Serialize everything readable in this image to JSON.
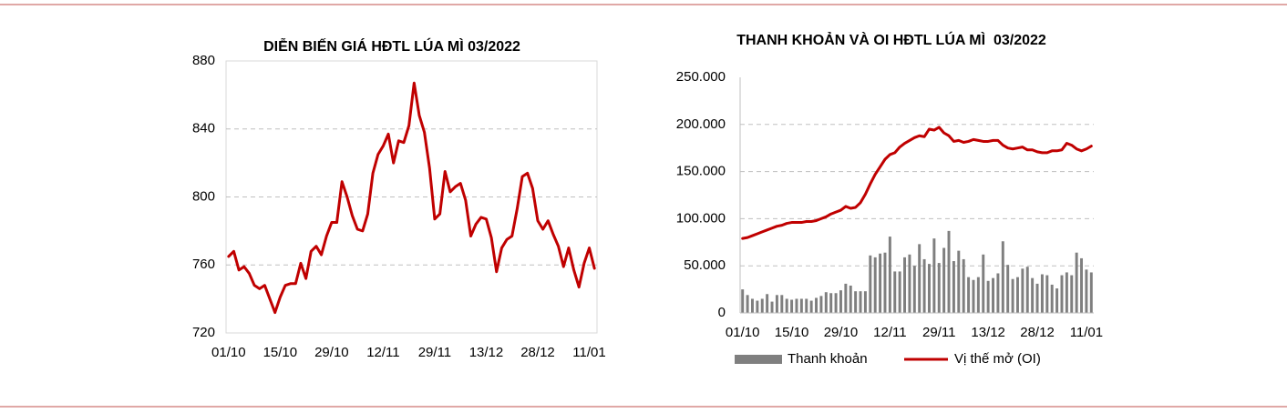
{
  "chart_data": [
    {
      "type": "line",
      "title": "DIỄN BIẾN GIÁ HĐTL LÚA MÌ 03/2022",
      "categories": [
        "01/10",
        null,
        null,
        null,
        null,
        null,
        null,
        null,
        null,
        null,
        "15/10",
        null,
        null,
        null,
        null,
        null,
        null,
        null,
        null,
        null,
        "29/10",
        null,
        null,
        null,
        null,
        null,
        null,
        null,
        null,
        null,
        "12/11",
        null,
        null,
        null,
        null,
        null,
        null,
        null,
        null,
        null,
        "29/11",
        null,
        null,
        null,
        null,
        null,
        null,
        null,
        null,
        null,
        "13/12",
        null,
        null,
        null,
        null,
        null,
        null,
        null,
        null,
        null,
        "28/12",
        null,
        null,
        null,
        null,
        null,
        null,
        null,
        null,
        null,
        "11/01",
        null
      ],
      "values": [
        765,
        768,
        757,
        759,
        755,
        748,
        746,
        748,
        740,
        732,
        741,
        748,
        749,
        749,
        761,
        752,
        768,
        771,
        766,
        777,
        785,
        785,
        809,
        800,
        789,
        781,
        780,
        790,
        814,
        825,
        830,
        837,
        820,
        833,
        832,
        842,
        867,
        848,
        838,
        817,
        787,
        790,
        815,
        803,
        806,
        808,
        798,
        777,
        784,
        788,
        787,
        776,
        756,
        770,
        775,
        777,
        793,
        812,
        814,
        805,
        786,
        781,
        786,
        778,
        771,
        759,
        770,
        757,
        747,
        761,
        770,
        758
      ],
      "color": "#c00000",
      "ylim": [
        720,
        880
      ],
      "yticks": [
        720,
        760,
        800,
        840,
        880
      ],
      "grid": true
    },
    {
      "type": "combo",
      "title": "THANH KHOẢN VÀ OI HĐTL LÚA MÌ  03/2022",
      "categories": [
        "01/10",
        null,
        null,
        null,
        null,
        null,
        null,
        null,
        null,
        null,
        "15/10",
        null,
        null,
        null,
        null,
        null,
        null,
        null,
        null,
        null,
        "29/10",
        null,
        null,
        null,
        null,
        null,
        null,
        null,
        null,
        null,
        "12/11",
        null,
        null,
        null,
        null,
        null,
        null,
        null,
        null,
        null,
        "29/11",
        null,
        null,
        null,
        null,
        null,
        null,
        null,
        null,
        null,
        "13/12",
        null,
        null,
        null,
        null,
        null,
        null,
        null,
        null,
        null,
        "28/12",
        null,
        null,
        null,
        null,
        null,
        null,
        null,
        null,
        null,
        "11/01",
        null
      ],
      "series": [
        {
          "name": "Thanh khoản",
          "type": "bar",
          "color": "#7f7f7f",
          "values": [
            25000,
            19000,
            15000,
            13000,
            15000,
            20000,
            12000,
            19000,
            19000,
            15000,
            14000,
            15000,
            15000,
            15000,
            13000,
            16000,
            18000,
            22000,
            21000,
            21000,
            24000,
            31000,
            29000,
            23000,
            23000,
            23000,
            61000,
            59000,
            63000,
            64000,
            81000,
            44000,
            44000,
            59000,
            62000,
            50000,
            73000,
            57000,
            52000,
            79000,
            53000,
            69000,
            87000,
            55000,
            66000,
            57000,
            38000,
            35000,
            38000,
            62000,
            34000,
            37000,
            42000,
            76000,
            51000,
            36000,
            38000,
            47000,
            49000,
            37000,
            31000,
            41000,
            40000,
            30000,
            26000,
            40000,
            43000,
            40000,
            64000,
            58000,
            46000,
            43000
          ]
        },
        {
          "name": "Vị thế mở (OI)",
          "type": "line",
          "color": "#c00000",
          "values": [
            79000,
            80000,
            82000,
            84000,
            86000,
            88000,
            90000,
            92000,
            93000,
            95000,
            96000,
            96000,
            96000,
            97000,
            97000,
            98000,
            100000,
            102000,
            105000,
            107000,
            109000,
            113000,
            111000,
            112000,
            117000,
            126000,
            137000,
            147000,
            155000,
            163000,
            168000,
            170000,
            176000,
            180000,
            183000,
            186000,
            188000,
            187000,
            195000,
            194000,
            197000,
            191000,
            188000,
            182000,
            183000,
            181000,
            182000,
            184000,
            183000,
            182000,
            182000,
            183000,
            183000,
            178000,
            175000,
            174000,
            175000,
            176000,
            173000,
            173000,
            171000,
            170000,
            170000,
            172000,
            172000,
            173000,
            180000,
            178000,
            174000,
            172000,
            174000,
            177000
          ]
        }
      ],
      "ylim": [
        0,
        250000
      ],
      "yticks": [
        0,
        {
          "value": 50000,
          "label": "50.000"
        },
        {
          "value": 100000,
          "label": "100.000"
        },
        {
          "value": 150000,
          "label": "150.000"
        },
        {
          "value": 200000,
          "label": "200.000"
        },
        {
          "value": 250000,
          "label": "250.000"
        }
      ],
      "grid": true,
      "legend": "bottom"
    }
  ]
}
